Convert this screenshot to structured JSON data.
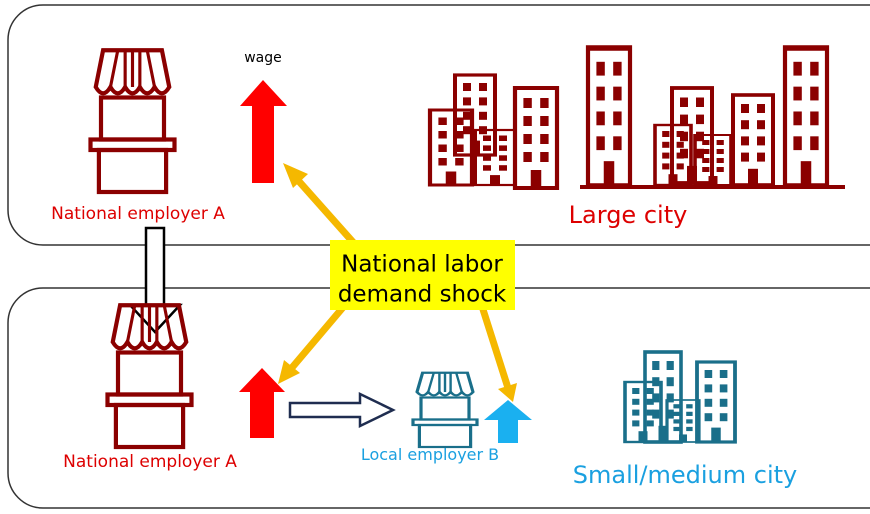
{
  "panels": [
    {
      "store_label": "National employer A",
      "wage_label": "wage",
      "city_label": "Large city"
    },
    {
      "store_label": "National employer A",
      "local_label": "Local employer B",
      "city_label": "Small/medium city"
    }
  ],
  "shock": {
    "lines": [
      "National labor",
      "demand shock"
    ]
  }
}
